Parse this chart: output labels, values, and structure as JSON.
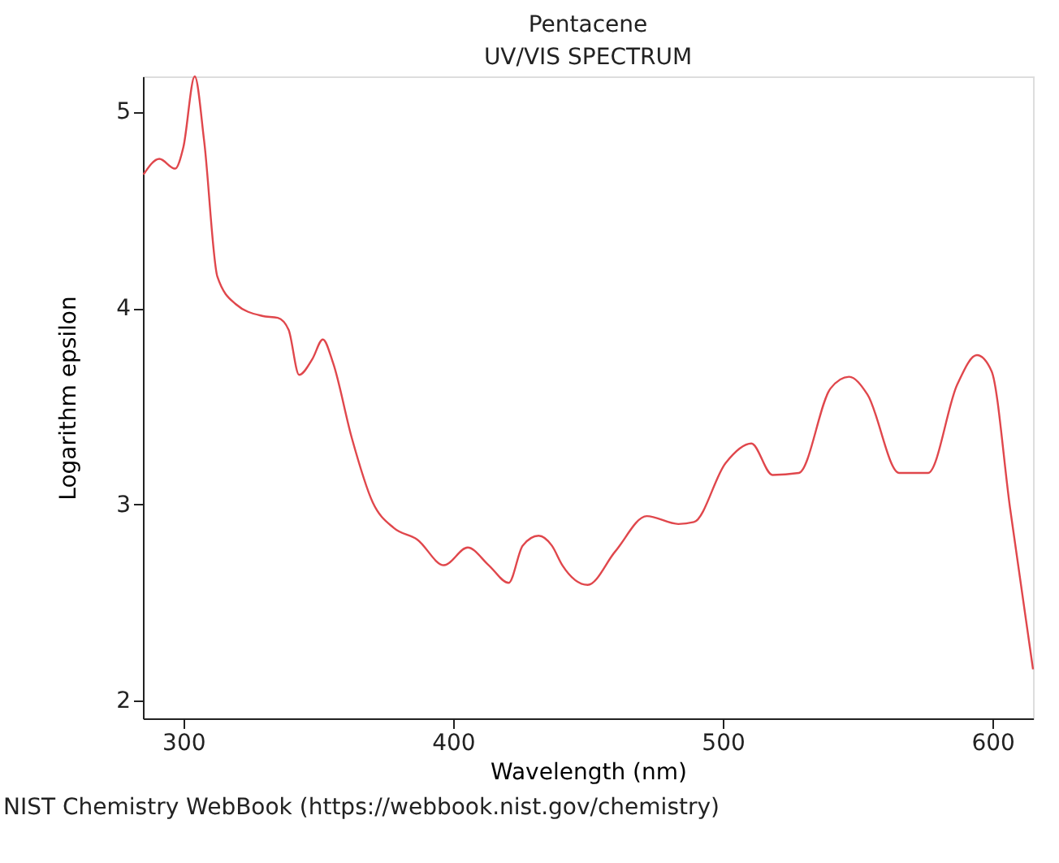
{
  "chart_data": {
    "type": "line",
    "title": "Pentacene",
    "subtitle": "UV/VIS SPECTRUM",
    "xlabel": "Wavelength (nm)",
    "ylabel": "Logarithm epsilon",
    "x": [
      285.2,
      291.1,
      296.9,
      300,
      304.2,
      307.7,
      312.6,
      319.4,
      329.2,
      335,
      339,
      342.9,
      347.8,
      351.7,
      355.5,
      362.4,
      370.2,
      378,
      386.8,
      396.6,
      405.4,
      413.2,
      420.6,
      425.8,
      431.7,
      436.6,
      440.5,
      449.9,
      460.1,
      471.8,
      483.5,
      489.3,
      501,
      510.6,
      518.4,
      528.2,
      539.9,
      546.8,
      553.6,
      565.4,
      576.1,
      586.9,
      594.2,
      599.6,
      606.5,
      615
    ],
    "series": [
      {
        "color": "#e0474c",
        "values": [
          4.68,
          4.76,
          4.71,
          4.82,
          5.18,
          4.85,
          4.16,
          4.02,
          3.96,
          3.95,
          3.89,
          3.66,
          3.74,
          3.84,
          3.72,
          3.34,
          3.01,
          2.88,
          2.82,
          2.69,
          2.78,
          2.69,
          2.6,
          2.79,
          2.84,
          2.79,
          2.69,
          2.59,
          2.76,
          2.94,
          2.9,
          2.91,
          3.21,
          3.31,
          3.15,
          3.16,
          3.59,
          3.65,
          3.56,
          3.16,
          3.16,
          3.61,
          3.76,
          3.68,
          2.98,
          2.16
        ]
      }
    ],
    "xlim": [
      285,
      615
    ],
    "ylim": [
      1.91,
      5.18
    ],
    "xticks": [
      300,
      400,
      500,
      600
    ],
    "yticks": [
      2,
      3,
      4,
      5
    ],
    "grid": false,
    "marker": "none",
    "line_style": "solid",
    "annotations": [
      "NIST Chemistry WebBook (https://webbook.nist.gov/chemistry)"
    ]
  }
}
